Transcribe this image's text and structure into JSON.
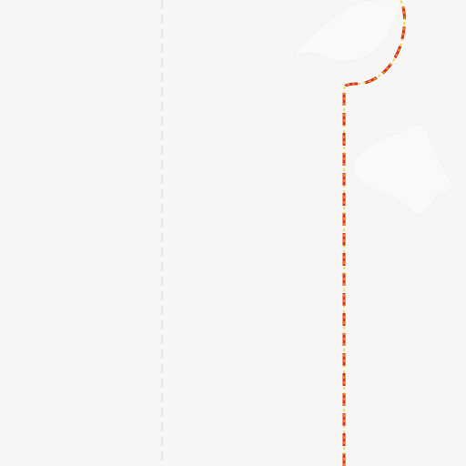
{
  "map": {
    "background_color": "#f6f6f6",
    "colors": {
      "water": "#f9f9f9",
      "boundary": "#e6e6e6",
      "route_outer": "#d62d20",
      "route_inner": "#f5c400"
    }
  }
}
